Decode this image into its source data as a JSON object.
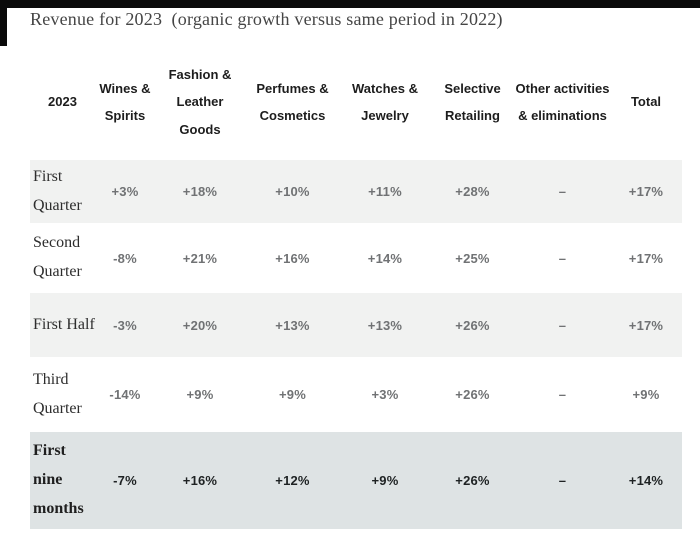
{
  "page": {
    "title": "Revenue for 2023  (organic growth versus same period in 2022)"
  },
  "colors": {
    "top_bar": "#0a0a0a",
    "row_shaded_bg": "#f1f2f1",
    "row_white_bg": "#ffffff",
    "highlight_row_bg": "#dee3e4",
    "header_text": "#1d1d1d",
    "value_text": "#707274",
    "highlight_value_text": "#1e2223",
    "title_text": "#454545"
  },
  "chart_data": {
    "type": "table",
    "title": "Revenue for 2023 (organic growth versus same period in 2022)",
    "corner_label": "2023",
    "columns": [
      "Wines & Spirits",
      "Fashion & Leather Goods",
      "Perfumes & Cosmetics",
      "Watches & Jewelry",
      "Selective Retailing",
      "Other activities & eliminations",
      "Total"
    ],
    "rows": [
      {
        "label": "First Quarter",
        "values": [
          "+3%",
          "+18%",
          "+10%",
          "+11%",
          "+28%",
          "–",
          "+17%"
        ]
      },
      {
        "label": "Second Quarter",
        "values": [
          "-8%",
          "+21%",
          "+16%",
          "+14%",
          "+25%",
          "–",
          "+17%"
        ]
      },
      {
        "label": "First Half",
        "values": [
          "-3%",
          "+20%",
          "+13%",
          "+13%",
          "+26%",
          "–",
          "+17%"
        ]
      },
      {
        "label": "Third Quarter",
        "values": [
          "-14%",
          "+9%",
          "+9%",
          "+3%",
          "+26%",
          "–",
          "+9%"
        ]
      },
      {
        "label": "First nine months",
        "values": [
          "-7%",
          "+16%",
          "+12%",
          "+9%",
          "+26%",
          "–",
          "+14%"
        ]
      }
    ]
  }
}
